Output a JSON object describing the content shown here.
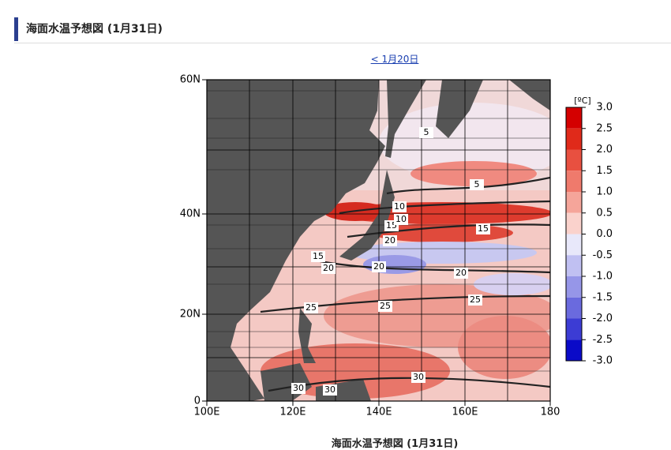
{
  "header": {
    "title": "海面水温予想図 (1月31日)"
  },
  "nav": {
    "prev": "< 1月20日"
  },
  "map": {
    "lat_labels": [
      "60N",
      "40N",
      "20N",
      "0"
    ],
    "lon_labels": [
      "100E",
      "120E",
      "140E",
      "160E",
      "180"
    ],
    "colorbar": {
      "unit": "[ºC]",
      "labels": [
        "3.0",
        "2.5",
        "2.0",
        "1.5",
        "1.0",
        "0.5",
        "0.0",
        "-0.5",
        "-1.0",
        "-1.5",
        "-2.0",
        "-2.5",
        "-3.0"
      ]
    },
    "contour_labels": [
      "5",
      "10",
      "5",
      "15",
      "10",
      "20",
      "15",
      "15",
      "20",
      "20",
      "20",
      "25",
      "25",
      "25",
      "30",
      "30",
      "30"
    ]
  },
  "caption": "海面水温予想図 (1月31日)"
}
